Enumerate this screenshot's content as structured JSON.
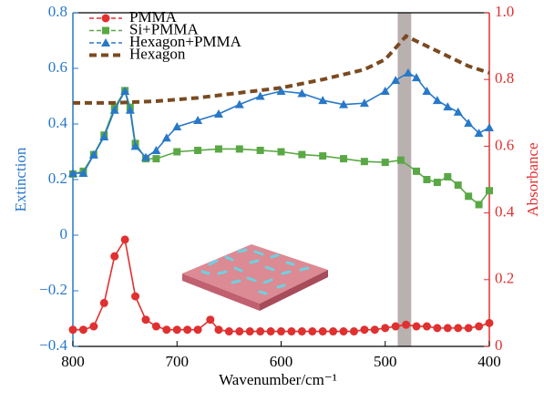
{
  "chart_data": {
    "type": "line",
    "xlabel": "Wavenumber/cm⁻¹",
    "ylabel": "Extinction",
    "y2label": "Absorbance",
    "xlim": [
      800,
      400
    ],
    "xticks": [
      800,
      700,
      600,
      500,
      400
    ],
    "ylim": [
      -0.4,
      0.8
    ],
    "yticks": [
      {
        "value": -0.4,
        "label": "−0.4"
      },
      {
        "value": -0.2,
        "label": "−0.2"
      },
      0,
      0.2,
      0.4,
      0.6,
      0.8
    ],
    "y2lim": [
      0,
      1.0
    ],
    "y2ticks": [
      0,
      0.2,
      0.4,
      0.6,
      0.8,
      {
        "value": 1.0,
        "label": "1.0"
      }
    ],
    "legend": "upper left",
    "highlight_band": [
      488,
      475
    ],
    "highlight_color": "#b9b0b0",
    "series": [
      {
        "name": "PMMA",
        "color": "#e03030",
        "marker": "circle",
        "axis": "y2",
        "x": [
          800,
          790,
          780,
          770,
          760,
          750,
          740,
          730,
          720,
          710,
          700,
          690,
          680,
          668,
          660,
          650,
          640,
          630,
          620,
          610,
          600,
          590,
          580,
          570,
          560,
          550,
          540,
          530,
          520,
          510,
          500,
          490,
          480,
          470,
          460,
          450,
          440,
          430,
          420,
          410,
          400
        ],
        "values": [
          0.05,
          0.05,
          0.06,
          0.13,
          0.27,
          0.32,
          0.15,
          0.08,
          0.06,
          0.05,
          0.05,
          0.05,
          0.05,
          0.08,
          0.05,
          0.045,
          0.045,
          0.045,
          0.045,
          0.045,
          0.045,
          0.045,
          0.045,
          0.045,
          0.045,
          0.045,
          0.045,
          0.045,
          0.05,
          0.05,
          0.055,
          0.06,
          0.065,
          0.06,
          0.06,
          0.055,
          0.055,
          0.055,
          0.055,
          0.06,
          0.07
        ]
      },
      {
        "name": "Si+PMMA",
        "color": "#5aa845",
        "marker": "square",
        "x": [
          800,
          790,
          780,
          770,
          760,
          750,
          745,
          740,
          730,
          720,
          700,
          680,
          660,
          640,
          620,
          600,
          580,
          560,
          540,
          520,
          500,
          485,
          470,
          460,
          450,
          440,
          430,
          420,
          410,
          400
        ],
        "values": [
          0.22,
          0.23,
          0.29,
          0.36,
          0.46,
          0.52,
          0.46,
          0.33,
          0.275,
          0.275,
          0.3,
          0.305,
          0.31,
          0.31,
          0.305,
          0.3,
          0.29,
          0.285,
          0.275,
          0.265,
          0.262,
          0.27,
          0.23,
          0.2,
          0.19,
          0.21,
          0.18,
          0.14,
          0.11,
          0.16
        ]
      },
      {
        "name": "Hexagon+PMMA",
        "color": "#2878c8",
        "marker": "triangle",
        "x": [
          800,
          790,
          780,
          770,
          760,
          750,
          745,
          740,
          730,
          720,
          710,
          700,
          680,
          660,
          640,
          620,
          600,
          580,
          560,
          540,
          520,
          500,
          490,
          478,
          470,
          460,
          450,
          440,
          430,
          420,
          410,
          400
        ],
        "values": [
          0.223,
          0.223,
          0.289,
          0.354,
          0.45,
          0.518,
          0.45,
          0.32,
          0.28,
          0.305,
          0.35,
          0.39,
          0.413,
          0.436,
          0.47,
          0.5,
          0.518,
          0.51,
          0.485,
          0.47,
          0.475,
          0.518,
          0.557,
          0.584,
          0.567,
          0.518,
          0.485,
          0.462,
          0.443,
          0.403,
          0.367,
          0.387
        ]
      },
      {
        "name": "Hexagon",
        "color": "#7a4a20",
        "marker": "none",
        "dashed": true,
        "axis": "y2",
        "x": [
          800,
          760,
          720,
          680,
          640,
          600,
          560,
          520,
          500,
          480,
          460,
          440,
          420,
          400
        ],
        "values": [
          0.73,
          0.73,
          0.735,
          0.745,
          0.76,
          0.775,
          0.8,
          0.83,
          0.86,
          0.93,
          0.9,
          0.87,
          0.84,
          0.82
        ]
      }
    ]
  }
}
